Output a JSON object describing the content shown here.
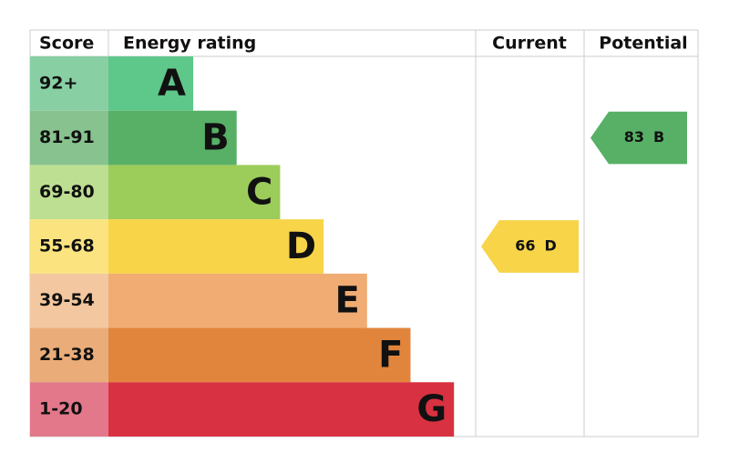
{
  "header": {
    "score": "Score",
    "rating": "Energy rating",
    "current": "Current",
    "potential": "Potential"
  },
  "bands": [
    {
      "score": "92+",
      "letter": "A",
      "color": "#5ec78a",
      "light": "#88cfa4"
    },
    {
      "score": "81-91",
      "letter": "B",
      "color": "#57b066",
      "light": "#87c28f"
    },
    {
      "score": "69-80",
      "letter": "C",
      "color": "#9ccc5a",
      "light": "#bddf92"
    },
    {
      "score": "55-68",
      "letter": "D",
      "color": "#f7d448",
      "light": "#fbe47f"
    },
    {
      "score": "39-54",
      "letter": "E",
      "color": "#f0ac72",
      "light": "#f3c79f"
    },
    {
      "score": "21-38",
      "letter": "F",
      "color": "#e2853c",
      "light": "#eaac78"
    },
    {
      "score": "1-20",
      "letter": "G",
      "color": "#d83141",
      "light": "#e2788a"
    }
  ],
  "current": {
    "value": 66,
    "letter": "D"
  },
  "potential": {
    "value": 83,
    "letter": "B"
  }
}
